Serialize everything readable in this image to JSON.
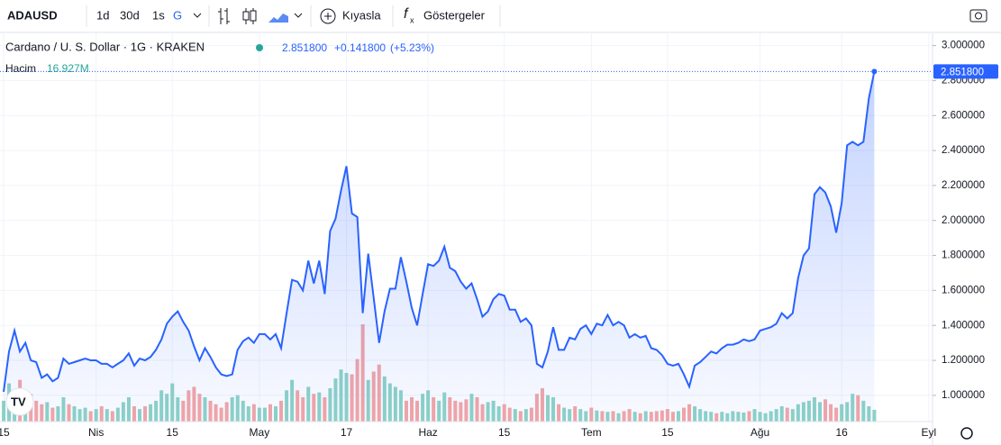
{
  "toolbar": {
    "symbol": "ADAUSD",
    "intervals": [
      "1d",
      "30d",
      "1s",
      "G"
    ],
    "compare": "Kıyasla",
    "indicators": "Göstergeler"
  },
  "chart_data": {
    "type": "line",
    "title": "Cardano / U. S. Dollar · 1G · KRAKEN",
    "last": {
      "value": 2.8518,
      "label": "2.851800"
    },
    "change": {
      "value": 0.1418,
      "label": "+0.141800"
    },
    "change_pct": {
      "value": 5.23,
      "label": "(+5.23%)"
    },
    "categories": [
      "15",
      null,
      null,
      null,
      null,
      null,
      null,
      null,
      null,
      null,
      null,
      null,
      null,
      null,
      null,
      null,
      null,
      "Nis",
      null,
      null,
      null,
      null,
      null,
      null,
      null,
      null,
      null,
      null,
      null,
      null,
      null,
      "15",
      null,
      null,
      null,
      null,
      null,
      null,
      null,
      null,
      null,
      null,
      null,
      null,
      null,
      null,
      null,
      "May",
      null,
      null,
      null,
      null,
      null,
      null,
      null,
      null,
      null,
      null,
      null,
      null,
      null,
      null,
      null,
      "17",
      null,
      null,
      null,
      null,
      null,
      null,
      null,
      null,
      null,
      null,
      null,
      null,
      null,
      null,
      "Haz",
      null,
      null,
      null,
      null,
      null,
      null,
      null,
      null,
      null,
      null,
      null,
      null,
      null,
      "15",
      null,
      null,
      null,
      null,
      null,
      null,
      null,
      null,
      null,
      null,
      null,
      null,
      null,
      null,
      null,
      "Tem",
      null,
      null,
      null,
      null,
      null,
      null,
      null,
      null,
      null,
      null,
      null,
      null,
      null,
      "15",
      null,
      null,
      null,
      null,
      null,
      null,
      null,
      null,
      null,
      null,
      null,
      null,
      null,
      null,
      null,
      null,
      "Ağu",
      null,
      null,
      null,
      null,
      null,
      null,
      null,
      null,
      null,
      null,
      null,
      null,
      null,
      null,
      "16",
      null,
      null,
      null,
      null,
      null,
      null,
      null,
      null,
      null,
      null,
      null,
      null,
      null,
      null,
      null,
      "Eyl"
    ],
    "series": [
      {
        "name": "ADAUSD",
        "color": "#2962ff",
        "values": [
          1.02,
          1.25,
          1.37,
          1.25,
          1.3,
          1.2,
          1.19,
          1.1,
          1.12,
          1.08,
          1.1,
          1.21,
          1.18,
          1.19,
          1.2,
          1.21,
          1.2,
          1.2,
          1.18,
          1.18,
          1.16,
          1.18,
          1.2,
          1.24,
          1.17,
          1.21,
          1.2,
          1.22,
          1.26,
          1.32,
          1.41,
          1.45,
          1.48,
          1.42,
          1.37,
          1.28,
          1.2,
          1.27,
          1.22,
          1.16,
          1.12,
          1.11,
          1.12,
          1.26,
          1.31,
          1.33,
          1.3,
          1.35,
          1.35,
          1.32,
          1.35,
          1.27,
          1.47,
          1.66,
          1.65,
          1.6,
          1.77,
          1.64,
          1.77,
          1.58,
          1.94,
          2.01,
          2.17,
          2.31,
          2.04,
          2.02,
          1.47,
          1.81,
          1.56,
          1.3,
          1.48,
          1.61,
          1.61,
          1.79,
          1.65,
          1.5,
          1.4,
          1.58,
          1.75,
          1.74,
          1.77,
          1.85,
          1.73,
          1.71,
          1.65,
          1.61,
          1.64,
          1.55,
          1.45,
          1.48,
          1.55,
          1.58,
          1.57,
          1.49,
          1.49,
          1.42,
          1.44,
          1.4,
          1.18,
          1.16,
          1.25,
          1.39,
          1.26,
          1.26,
          1.33,
          1.32,
          1.38,
          1.4,
          1.35,
          1.41,
          1.4,
          1.46,
          1.4,
          1.42,
          1.4,
          1.33,
          1.35,
          1.33,
          1.34,
          1.27,
          1.26,
          1.23,
          1.18,
          1.17,
          1.18,
          1.12,
          1.05,
          1.17,
          1.19,
          1.22,
          1.25,
          1.24,
          1.27,
          1.29,
          1.29,
          1.3,
          1.32,
          1.31,
          1.32,
          1.37,
          1.38,
          1.39,
          1.41,
          1.47,
          1.44,
          1.47,
          1.67,
          1.8,
          1.84,
          2.15,
          2.19,
          2.16,
          2.08,
          1.93,
          2.1,
          2.43,
          2.45,
          2.43,
          2.45,
          2.7,
          2.8518,
          null,
          null,
          null,
          null,
          null,
          null,
          null,
          null,
          null,
          null
        ]
      }
    ],
    "volume": {
      "name": "Hacim",
      "volume_label": "16.927M",
      "up_color": "#8ed3c7",
      "down_color": "#f4a6a6",
      "values": [
        30,
        55,
        45,
        60,
        35,
        40,
        30,
        25,
        28,
        20,
        22,
        35,
        25,
        22,
        18,
        20,
        15,
        18,
        22,
        18,
        15,
        20,
        28,
        35,
        22,
        18,
        22,
        25,
        30,
        45,
        40,
        55,
        35,
        30,
        45,
        50,
        40,
        35,
        30,
        25,
        20,
        28,
        35,
        38,
        30,
        22,
        25,
        20,
        20,
        25,
        22,
        30,
        45,
        60,
        45,
        35,
        50,
        40,
        42,
        35,
        48,
        62,
        75,
        70,
        68,
        90,
        140,
        60,
        72,
        82,
        65,
        55,
        50,
        45,
        30,
        35,
        30,
        40,
        45,
        35,
        30,
        42,
        35,
        30,
        28,
        32,
        40,
        35,
        25,
        28,
        30,
        22,
        25,
        20,
        18,
        15,
        18,
        20,
        40,
        48,
        38,
        35,
        25,
        20,
        18,
        22,
        18,
        15,
        20,
        16,
        15,
        14,
        15,
        12,
        15,
        18,
        14,
        12,
        15,
        14,
        15,
        16,
        18,
        14,
        15,
        20,
        25,
        22,
        18,
        15,
        14,
        12,
        14,
        12,
        15,
        14,
        13,
        15,
        18,
        14,
        12,
        15,
        18,
        22,
        20,
        18,
        25,
        28,
        30,
        35,
        28,
        32,
        25,
        20,
        25,
        28,
        40,
        38,
        30,
        22,
        16.927,
        null,
        null,
        null,
        null,
        null,
        null,
        null,
        null,
        null,
        null
      ]
    },
    "ylim": [
      0.85,
      3.07
    ],
    "yticks": [
      {
        "value": 1.0,
        "label": "1.000000"
      },
      {
        "value": 1.2,
        "label": "1.200000"
      },
      {
        "value": 1.4,
        "label": "1.400000"
      },
      {
        "value": 1.6,
        "label": "1.600000"
      },
      {
        "value": 1.8,
        "label": "1.800000"
      },
      {
        "value": 2.0,
        "label": "2.000000"
      },
      {
        "value": 2.2,
        "label": "2.200000"
      },
      {
        "value": 2.4,
        "label": "2.400000"
      },
      {
        "value": 2.6,
        "label": "2.600000"
      },
      {
        "value": 2.8,
        "label": "2.800000"
      },
      {
        "value": 3.0,
        "label": "3.000000"
      }
    ],
    "grid": true
  }
}
